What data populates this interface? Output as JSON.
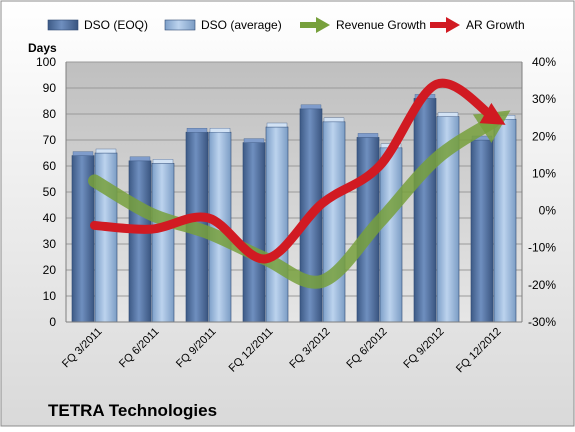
{
  "chart_data": {
    "type": "bar",
    "title": "TETRA Technologies",
    "ylabel": "Days",
    "y2label": "",
    "categories": [
      "FQ 3/2011",
      "FQ 6/2011",
      "FQ 9/2011",
      "FQ 12/2011",
      "FQ 3/2012",
      "FQ 6/2012",
      "FQ 9/2012",
      "FQ 12/2012"
    ],
    "ylim": [
      0,
      100
    ],
    "y2lim": [
      -30,
      40
    ],
    "yticks": [
      "0",
      "10",
      "20",
      "30",
      "40",
      "50",
      "60",
      "70",
      "80",
      "90",
      "100"
    ],
    "y2ticks": [
      "-30%",
      "-20%",
      "-10%",
      "0%",
      "10%",
      "20%",
      "30%",
      "40%"
    ],
    "grid": true,
    "legend_position": "top",
    "series": [
      {
        "name": "DSO (EOQ)",
        "kind": "bar",
        "axis": "left",
        "color": "#4f6d9b",
        "values": [
          64,
          62,
          73,
          69,
          82,
          71,
          86,
          70
        ]
      },
      {
        "name": "DSO (average)",
        "kind": "bar",
        "axis": "left",
        "color": "#95b6dc",
        "values": [
          65,
          61,
          73,
          75,
          77,
          67,
          79,
          78
        ]
      },
      {
        "name": "Revenue Growth",
        "kind": "line",
        "axis": "right",
        "color": "#77a03c",
        "values": [
          8,
          -1,
          -6,
          -13,
          -19,
          -3,
          14,
          24
        ]
      },
      {
        "name": "AR Growth",
        "kind": "line",
        "axis": "right",
        "color": "#c8161e",
        "values": [
          -4,
          -5,
          -2,
          -13,
          2,
          12,
          34,
          25
        ]
      }
    ]
  }
}
